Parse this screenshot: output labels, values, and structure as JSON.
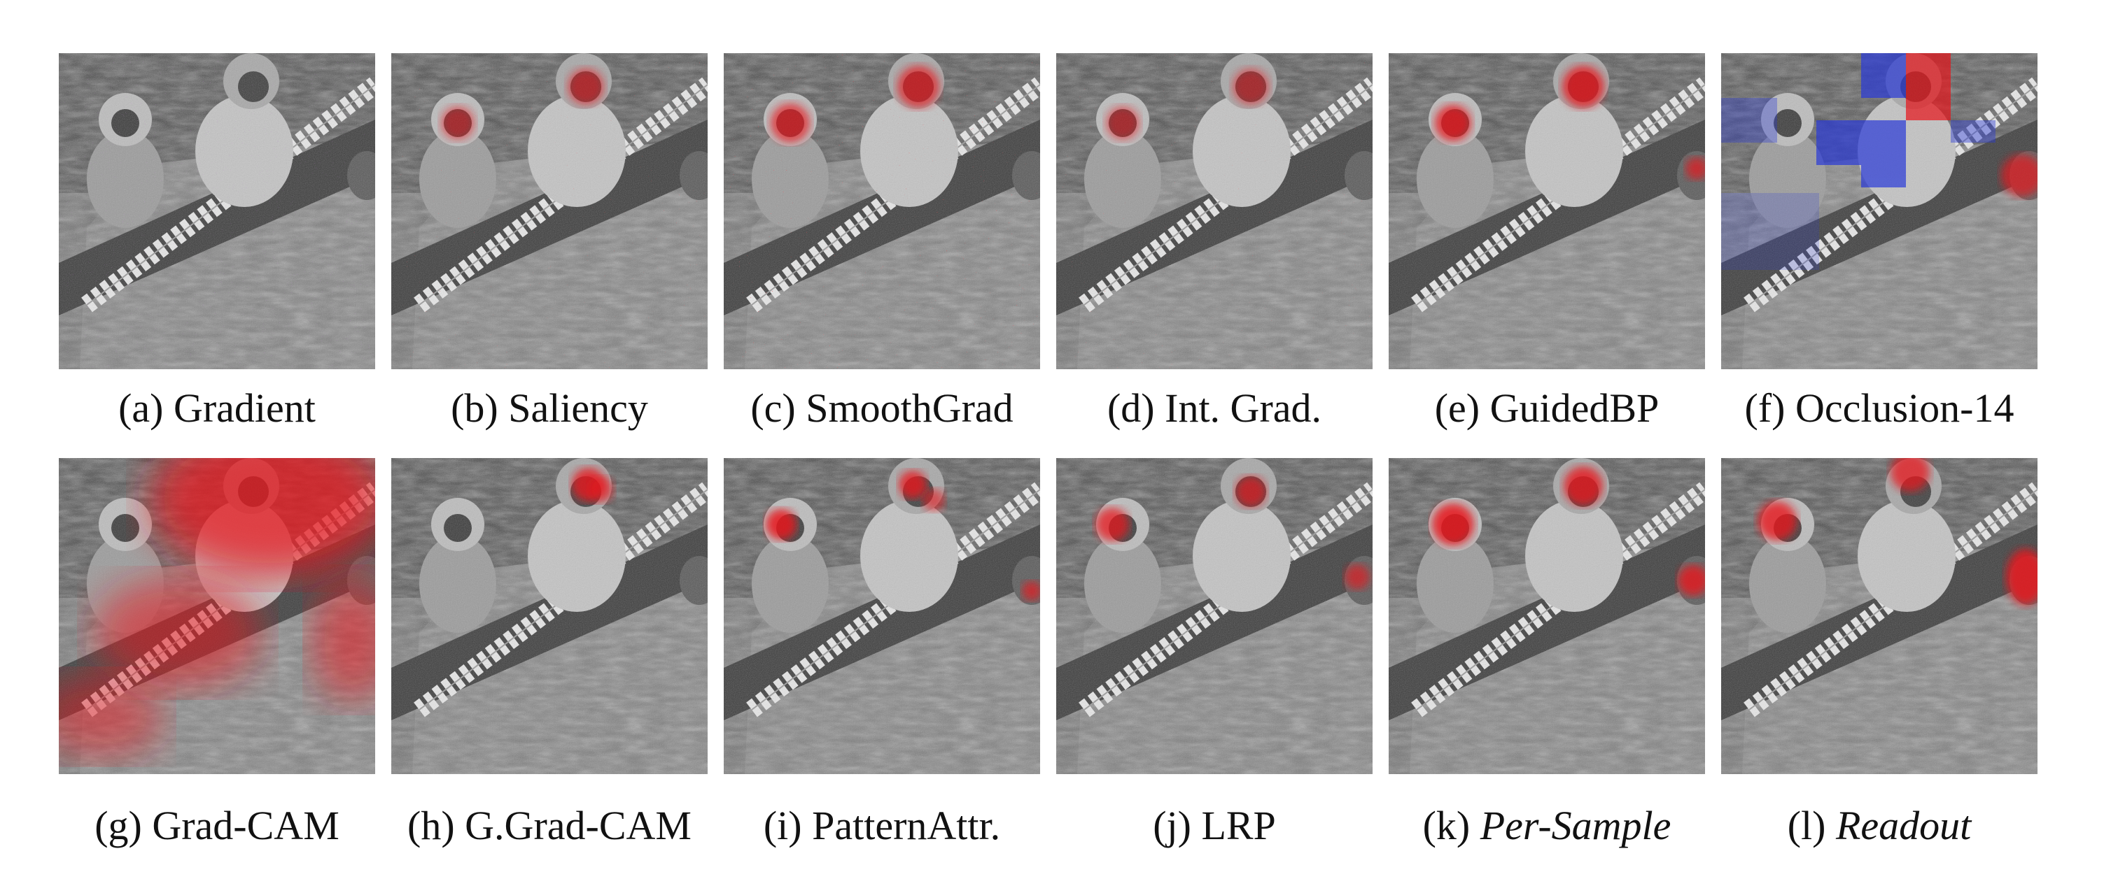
{
  "figure": {
    "panels": [
      {
        "letter": "(a)",
        "method": "Gradient",
        "italic": false,
        "overlay": "noise-purple"
      },
      {
        "letter": "(b)",
        "method": "Saliency",
        "italic": false,
        "overlay": "speckle-red-light"
      },
      {
        "letter": "(c)",
        "method": "SmoothGrad",
        "italic": false,
        "overlay": "speckle-red-strong"
      },
      {
        "letter": "(d)",
        "method": "Int. Grad.",
        "italic": false,
        "overlay": "speckle-red-light"
      },
      {
        "letter": "(e)",
        "method": "GuidedBP",
        "italic": false,
        "overlay": "faces-red"
      },
      {
        "letter": "(f)",
        "method": "Occlusion-14",
        "italic": false,
        "overlay": "blocks-red-blue"
      },
      {
        "letter": "(g)",
        "method": "Grad-CAM",
        "italic": false,
        "overlay": "blob-red-large"
      },
      {
        "letter": "(h)",
        "method": "G.Grad-CAM",
        "italic": false,
        "overlay": "faces-red-small"
      },
      {
        "letter": "(i)",
        "method": "PatternAttr.",
        "italic": false,
        "overlay": "faces-red"
      },
      {
        "letter": "(j)",
        "method": "LRP",
        "italic": false,
        "overlay": "faces-red"
      },
      {
        "letter": "(k)",
        "method": "Per-Sample",
        "italic": true,
        "overlay": "faces-red-strong"
      },
      {
        "letter": "(l)",
        "method": "Readout",
        "italic": true,
        "overlay": "faces-red-strong"
      }
    ],
    "colors": {
      "attribution_positive": "#e8141a",
      "attribution_negative": "#2a3ad8",
      "background_gray": "#6e6e6e"
    }
  }
}
